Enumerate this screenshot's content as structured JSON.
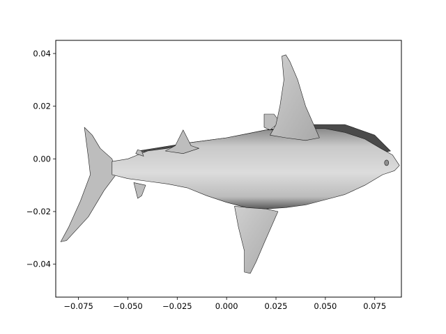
{
  "chart_data": {
    "type": "image",
    "title": "",
    "xlabel": "",
    "ylabel": "",
    "xlim": [
      -0.0865,
      0.0885
    ],
    "ylim": [
      -0.0525,
      0.045
    ],
    "x_ticks": [
      {
        "value": -0.075,
        "label": "−0.075"
      },
      {
        "value": -0.05,
        "label": "−0.050"
      },
      {
        "value": -0.025,
        "label": "−0.025"
      },
      {
        "value": 0.0,
        "label": "0.000"
      },
      {
        "value": 0.025,
        "label": "0.025"
      },
      {
        "value": 0.05,
        "label": "0.050"
      },
      {
        "value": 0.075,
        "label": "0.075"
      }
    ],
    "y_ticks": [
      {
        "value": 0.04,
        "label": "0.04"
      },
      {
        "value": 0.02,
        "label": "0.02"
      },
      {
        "value": 0.0,
        "label": "0.00"
      },
      {
        "value": -0.02,
        "label": "−0.02"
      },
      {
        "value": -0.04,
        "label": "−0.04"
      }
    ],
    "grid": false,
    "content": "grayscale-shaded 3D mesh of a shark viewed from below",
    "colors": {
      "body_light": "#d3d3d3",
      "body_mid": "#bdbdbd",
      "body_dark": "#4a4a4a",
      "edge": "#1a1a1a"
    }
  }
}
